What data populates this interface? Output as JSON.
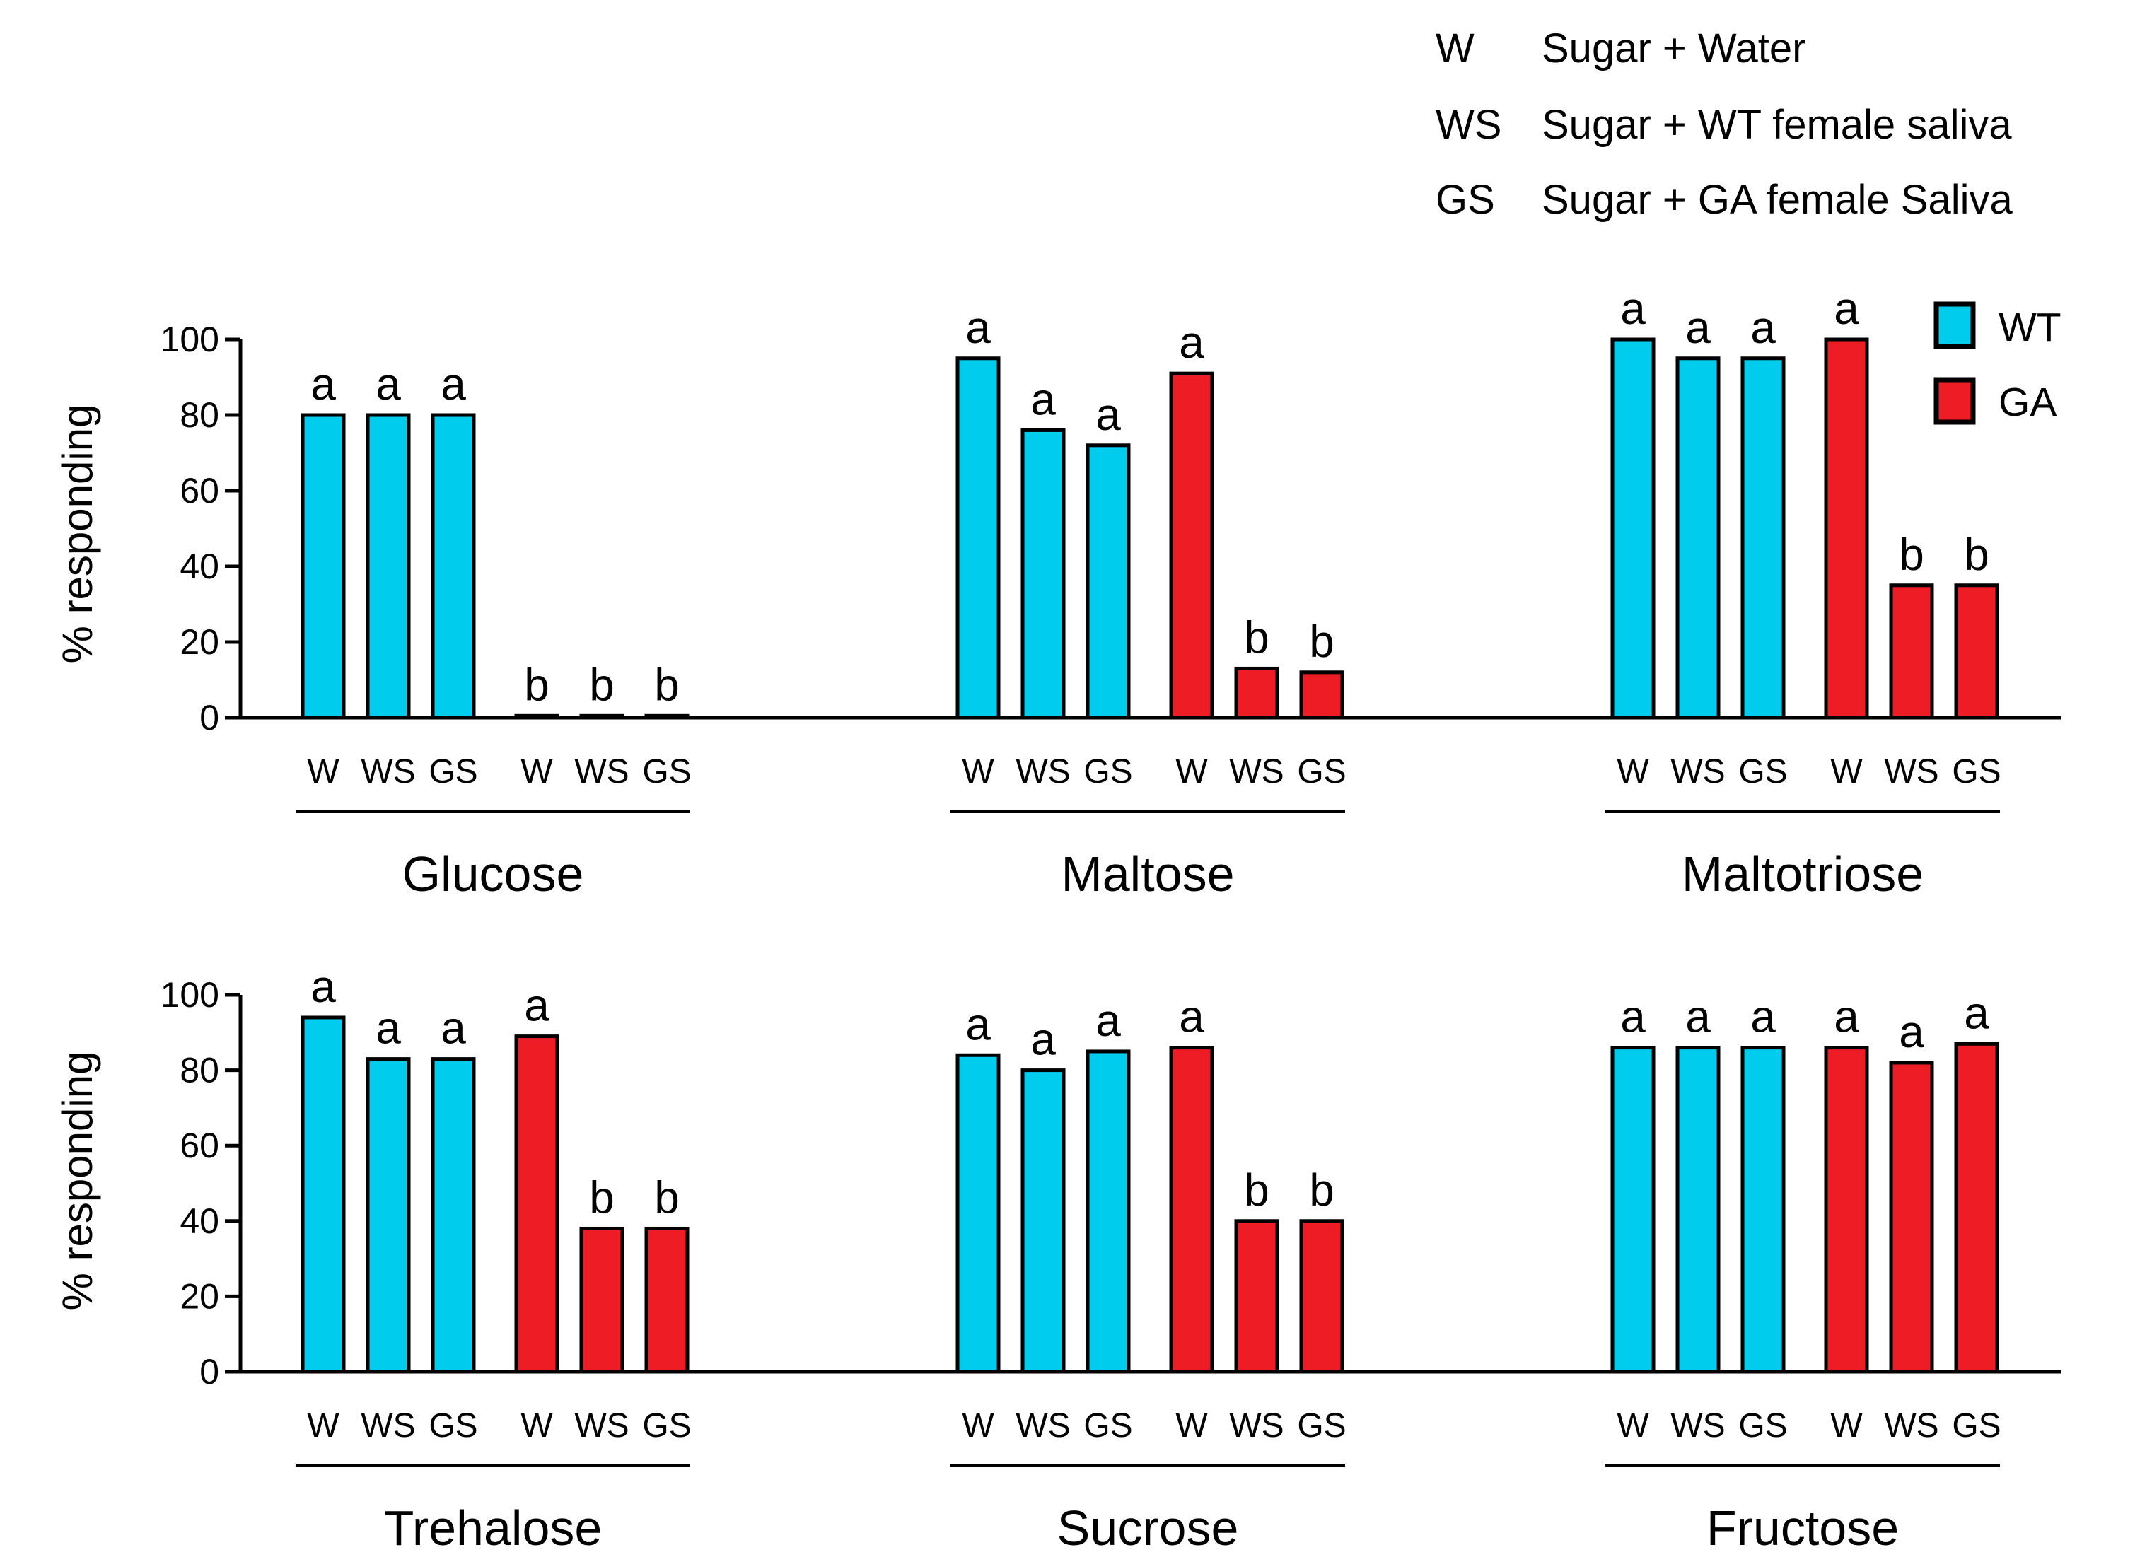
{
  "key": [
    {
      "abbr": "W",
      "desc": "Sugar + Water"
    },
    {
      "abbr": "WS",
      "desc": "Sugar + WT female saliva"
    },
    {
      "abbr": "GS",
      "desc": "Sugar + GA female Saliva"
    }
  ],
  "legend": [
    {
      "label": "WT",
      "color": "#00ccee"
    },
    {
      "label": "GA",
      "color": "#ee1c24"
    }
  ],
  "chart_data": {
    "type": "bar",
    "ylabel": "% responding",
    "ylim": [
      0,
      100
    ],
    "yticks": [
      0,
      20,
      40,
      60,
      80,
      100
    ],
    "categories": [
      "W",
      "WS",
      "GS",
      "W",
      "WS",
      "GS"
    ],
    "groups": [
      "WT",
      "WT",
      "WT",
      "GA",
      "GA",
      "GA"
    ],
    "panels": [
      {
        "title": "Glucose",
        "values": [
          80,
          80,
          80,
          0.5,
          0.5,
          0.5
        ],
        "letters": [
          "a",
          "a",
          "a",
          "b",
          "b",
          "b"
        ]
      },
      {
        "title": "Maltose",
        "values": [
          95,
          76,
          72,
          91,
          13,
          12
        ],
        "letters": [
          "a",
          "a",
          "a",
          "a",
          "b",
          "b"
        ]
      },
      {
        "title": "Maltotriose",
        "values": [
          100,
          95,
          95,
          100,
          35,
          35
        ],
        "letters": [
          "a",
          "a",
          "a",
          "a",
          "b",
          "b"
        ]
      },
      {
        "title": "Trehalose",
        "values": [
          94,
          83,
          83,
          89,
          38,
          38
        ],
        "letters": [
          "a",
          "a",
          "a",
          "a",
          "b",
          "b"
        ]
      },
      {
        "title": "Sucrose",
        "values": [
          84,
          80,
          85,
          86,
          40,
          40
        ],
        "letters": [
          "a",
          "a",
          "a",
          "a",
          "b",
          "b"
        ]
      },
      {
        "title": "Fructose",
        "values": [
          86,
          86,
          86,
          86,
          82,
          87
        ],
        "letters": [
          "a",
          "a",
          "a",
          "a",
          "a",
          "a"
        ]
      }
    ]
  }
}
